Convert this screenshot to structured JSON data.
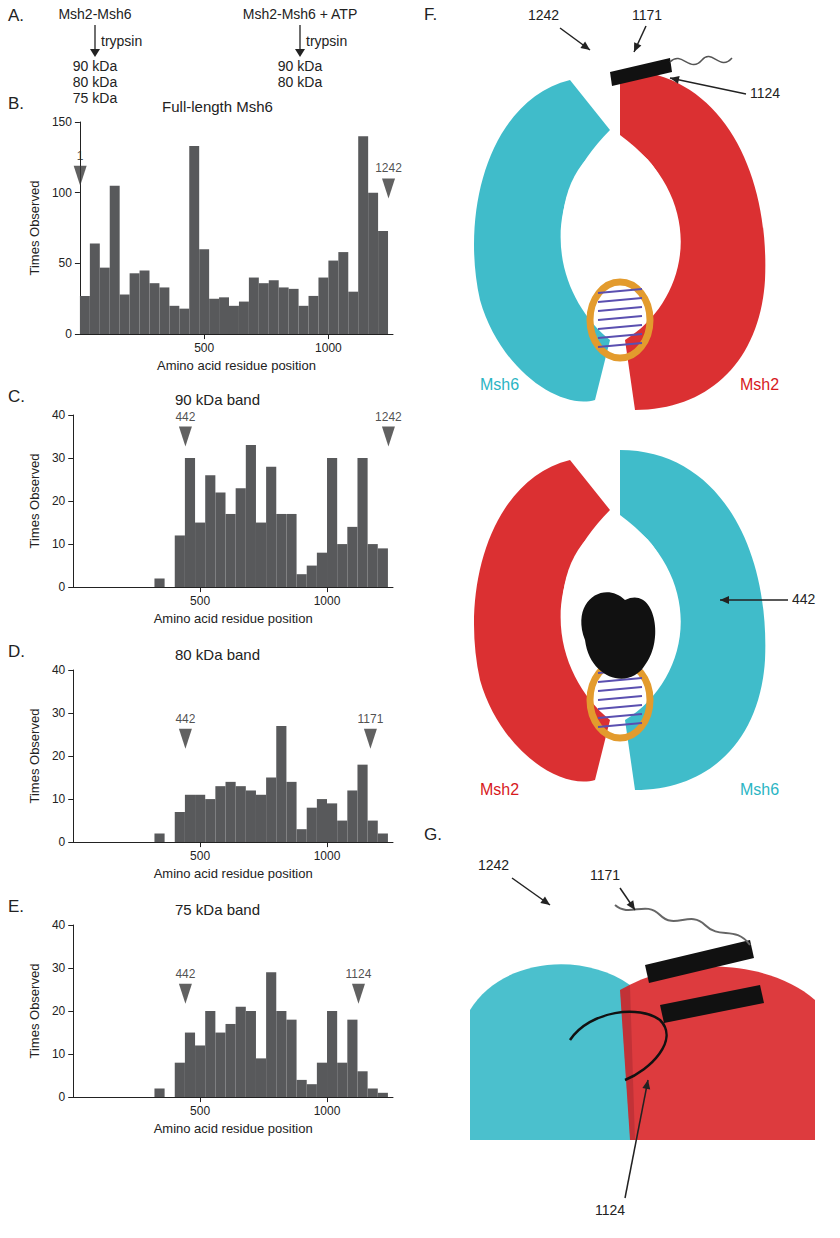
{
  "panel_a": {
    "letter": "A.",
    "left": {
      "start": "Msh2-Msh6",
      "enzyme": "trypsin",
      "products": [
        "90 kDa",
        "80 kDa",
        "75 kDa"
      ]
    },
    "right": {
      "start": "Msh2-Msh6 + ATP",
      "enzyme": "trypsin",
      "products": [
        "90 kDa",
        "80 kDa"
      ]
    }
  },
  "chart_data": [
    {
      "panel": "B.",
      "type": "histogram",
      "title": "Full-length Msh6",
      "x_label": "Amino acid residue position",
      "y_label": "Times Observed",
      "bins": [
        0,
        40,
        80,
        120,
        160,
        200,
        240,
        280,
        320,
        360,
        400,
        440,
        480,
        520,
        560,
        600,
        640,
        680,
        720,
        760,
        800,
        840,
        880,
        920,
        960,
        1000,
        1040,
        1080,
        1120,
        1160,
        1200,
        1240
      ],
      "counts": [
        27,
        64,
        47,
        105,
        28,
        43,
        45,
        36,
        33,
        20,
        18,
        133,
        60,
        25,
        26,
        20,
        23,
        40,
        36,
        38,
        33,
        32,
        20,
        27,
        40,
        52,
        58,
        30,
        140,
        100,
        73
      ],
      "color": "#58595b",
      "xlim": [
        0,
        1260
      ],
      "xticks": [
        500,
        1000
      ],
      "ylim": [
        0,
        150
      ],
      "yticks": [
        0,
        50,
        100,
        150
      ],
      "grid": false,
      "annotations": [
        {
          "x": 1,
          "y": 112,
          "label": "1"
        },
        {
          "x": 1242,
          "y": 103,
          "label": "1242"
        }
      ]
    },
    {
      "panel": "C.",
      "type": "histogram",
      "title": "90 kDa band",
      "x_label": "Amino acid residue position",
      "y_label": "Times Observed",
      "bins": [
        0,
        40,
        80,
        120,
        160,
        200,
        240,
        280,
        320,
        360,
        400,
        440,
        480,
        520,
        560,
        600,
        640,
        680,
        720,
        760,
        800,
        840,
        880,
        920,
        960,
        1000,
        1040,
        1080,
        1120,
        1160,
        1200,
        1240
      ],
      "counts": [
        0,
        0,
        0,
        0,
        0,
        0,
        0,
        0,
        2,
        0,
        12,
        30,
        15,
        26,
        22,
        17,
        23,
        33,
        15,
        28,
        17,
        17,
        3,
        5,
        8,
        30,
        10,
        14,
        30,
        10,
        9
      ],
      "color": "#58595b",
      "xlim": [
        0,
        1260
      ],
      "xticks": [
        500,
        1000
      ],
      "ylim": [
        0,
        40
      ],
      "yticks": [
        0,
        10,
        20,
        30,
        40
      ],
      "grid": false,
      "annotations": [
        {
          "x": 442,
          "y": 35,
          "label": "442"
        },
        {
          "x": 1242,
          "y": 35,
          "label": "1242"
        }
      ]
    },
    {
      "panel": "D.",
      "type": "histogram",
      "title": "80 kDa band",
      "x_label": "Amino acid residue position",
      "y_label": "Times Observed",
      "bins": [
        0,
        40,
        80,
        120,
        160,
        200,
        240,
        280,
        320,
        360,
        400,
        440,
        480,
        520,
        560,
        600,
        640,
        680,
        720,
        760,
        800,
        840,
        880,
        920,
        960,
        1000,
        1040,
        1080,
        1120,
        1160,
        1200,
        1240
      ],
      "counts": [
        0,
        0,
        0,
        0,
        0,
        0,
        0,
        0,
        2,
        0,
        7,
        11,
        11,
        10,
        13,
        14,
        13,
        12,
        11,
        15,
        27,
        14,
        3,
        8,
        10,
        9,
        5,
        12,
        18,
        5,
        2
      ],
      "color": "#58595b",
      "xlim": [
        0,
        1260
      ],
      "xticks": [
        500,
        1000
      ],
      "ylim": [
        0,
        40
      ],
      "yticks": [
        0,
        10,
        20,
        30,
        40
      ],
      "grid": false,
      "annotations": [
        {
          "x": 442,
          "y": 24,
          "label": "442"
        },
        {
          "x": 1171,
          "y": 24,
          "label": "1171"
        }
      ]
    },
    {
      "panel": "E.",
      "type": "histogram",
      "title": "75 kDa band",
      "x_label": "Amino acid residue position",
      "y_label": "Times Observed",
      "bins": [
        0,
        40,
        80,
        120,
        160,
        200,
        240,
        280,
        320,
        360,
        400,
        440,
        480,
        520,
        560,
        600,
        640,
        680,
        720,
        760,
        800,
        840,
        880,
        920,
        960,
        1000,
        1040,
        1080,
        1120,
        1160,
        1200,
        1240
      ],
      "counts": [
        0,
        0,
        0,
        0,
        0,
        0,
        0,
        0,
        2,
        0,
        8,
        15,
        12,
        20,
        15,
        17,
        21,
        20,
        9,
        29,
        20,
        18,
        4,
        3,
        8,
        20,
        8,
        18,
        6,
        2,
        1
      ],
      "color": "#58595b",
      "xlim": [
        0,
        1260
      ],
      "xticks": [
        500,
        1000
      ],
      "ylim": [
        0,
        40
      ],
      "yticks": [
        0,
        10,
        20,
        30,
        40
      ],
      "grid": false,
      "annotations": [
        {
          "x": 442,
          "y": 24,
          "label": "442"
        },
        {
          "x": 1124,
          "y": 24,
          "label": "1124"
        }
      ]
    }
  ],
  "panel_f": {
    "letter": "F.",
    "top": {
      "left_label": "Msh6",
      "right_label": "Msh2",
      "callouts": [
        "1242",
        "1171",
        "1124"
      ]
    },
    "bottom": {
      "left_label": "Msh2",
      "right_label": "Msh6",
      "callouts": [
        "442"
      ]
    }
  },
  "panel_g": {
    "letter": "G.",
    "callouts": [
      "1242",
      "1171",
      "1124"
    ]
  }
}
